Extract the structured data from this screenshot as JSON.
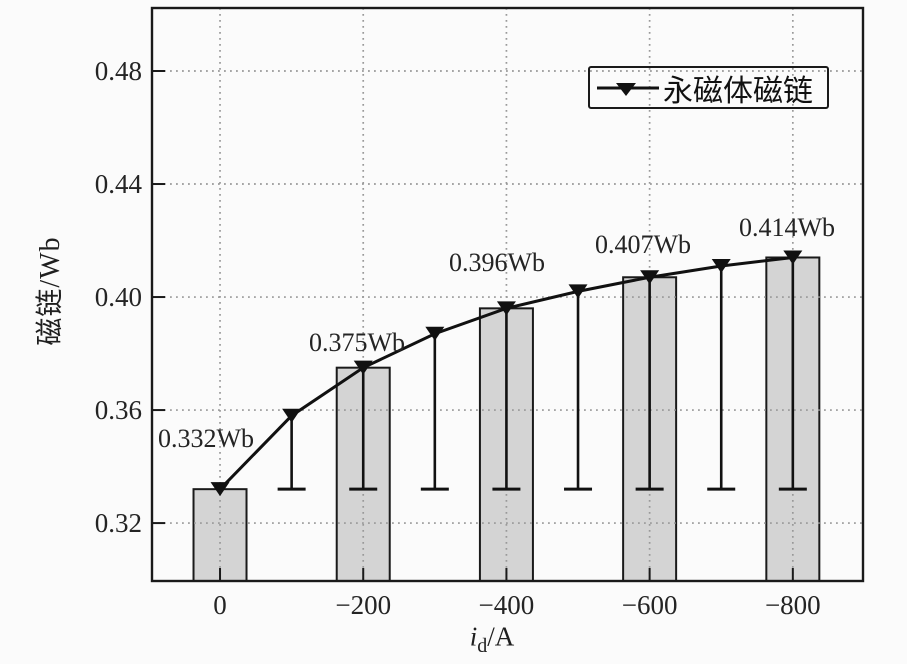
{
  "chart_data": {
    "type": "bar+line",
    "title": "",
    "xlabel": "id/A",
    "xlabel_parts": {
      "italic": "i",
      "sub": "d",
      "rest": "/A"
    },
    "ylabel": "磁链/Wb",
    "x_tick_values": [
      0,
      -200,
      -400,
      -600,
      -800
    ],
    "x_tick_labels": [
      "0",
      "−200",
      "−400",
      "−600",
      "−800"
    ],
    "y_tick_values": [
      0.32,
      0.36,
      0.4,
      0.44,
      0.48
    ],
    "y_tick_labels": [
      "0.32",
      "0.36",
      "0.40",
      "0.44",
      "0.48"
    ],
    "xlim": [
      95,
      -898
    ],
    "ylim": [
      0.2995,
      0.5023
    ],
    "grid": {
      "show": true,
      "style": "dotted",
      "on_major_ticks": true
    },
    "bars": {
      "x": [
        0,
        -200,
        -400,
        -600,
        -800
      ],
      "values": [
        0.332,
        0.375,
        0.396,
        0.407,
        0.414
      ]
    },
    "series": [
      {
        "name": "永磁体磁链",
        "type": "line",
        "marker": "triangle-down",
        "x": [
          0,
          -100,
          -200,
          -300,
          -400,
          -500,
          -600,
          -700,
          -800
        ],
        "values": [
          0.332,
          0.358,
          0.375,
          0.387,
          0.396,
          0.402,
          0.407,
          0.411,
          0.414
        ],
        "drop_lines_to": 0.332
      }
    ],
    "annotations": [
      {
        "text": "0.332Wb",
        "bar_x": 0
      },
      {
        "text": "0.375Wb",
        "bar_x": -200
      },
      {
        "text": "0.396Wb",
        "bar_x": -400
      },
      {
        "text": "0.407Wb",
        "bar_x": -600
      },
      {
        "text": "0.414Wb",
        "bar_x": -800
      }
    ],
    "legend": {
      "label": "永磁体磁链",
      "position": "upper-right"
    },
    "colors": {
      "bar_fill": "#d4d4d4",
      "bar_border": "#1a1a1a",
      "line": "#111111",
      "grid": "#999999",
      "text": "#242424",
      "background": "#fbfbfb",
      "legend_border": "#1a1a1a"
    }
  }
}
